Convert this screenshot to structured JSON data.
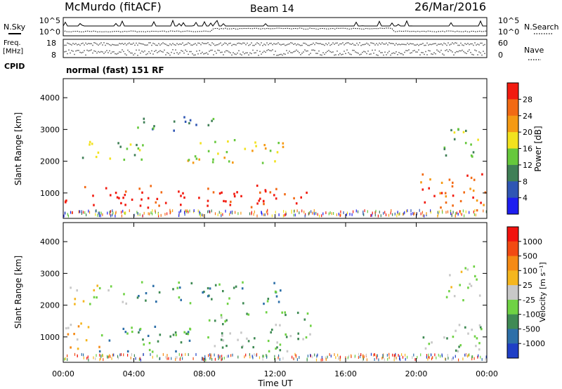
{
  "header": {
    "station": "McMurdo (fitACF)",
    "beam": "Beam 14",
    "date": "26/Mar/2016"
  },
  "aux_panels": {
    "nsky_label": "N.Sky",
    "nsearch_label": "N.Search",
    "noise_ticks": [
      "10^5",
      "10^0"
    ],
    "freq_label_top": "Freq.",
    "freq_label_bottom": "[MHz]",
    "freq_ticks": [
      "18",
      "8"
    ],
    "nave_label": "Nave",
    "nave_ticks": [
      "60",
      "0"
    ],
    "cpid_label": "CPID",
    "cpid_text": "normal (fast) 151 RF"
  },
  "chart_data": [
    {
      "type": "heatmap",
      "title": "",
      "xlabel": "",
      "ylabel": "Slant Range [km]",
      "yticks": [
        "1000",
        "2000",
        "3000",
        "4000"
      ],
      "ylim": [
        200,
        4600
      ],
      "xlim_hours": [
        0,
        24
      ],
      "colorbar": {
        "label": "Power [dB]",
        "ticks": [
          "4",
          "8",
          "12",
          "16",
          "20",
          "24",
          "28"
        ],
        "colors": [
          "#1d1df0",
          "#2f56b4",
          "#3f7f56",
          "#66c83c",
          "#f2e21e",
          "#f59a14",
          "#f26a14",
          "#f21b10"
        ]
      },
      "regions_description_units": "hours UT vs km",
      "bands": [
        {
          "t0": 0.0,
          "t1": 13.8,
          "r0": 500,
          "r1": 1200,
          "level": 7
        },
        {
          "t0": 0.2,
          "t1": 4.5,
          "r0": 2000,
          "r1": 2600,
          "level": 3
        },
        {
          "t0": 4.0,
          "t1": 8.5,
          "r0": 2900,
          "r1": 3400,
          "level": 2
        },
        {
          "t0": 7.0,
          "t1": 12.5,
          "r0": 1900,
          "r1": 2700,
          "level": 4
        },
        {
          "t0": 20.2,
          "t1": 24.0,
          "r0": 400,
          "r1": 1600,
          "level": 6
        },
        {
          "t0": 21.5,
          "t1": 23.5,
          "r0": 2000,
          "r1": 3100,
          "level": 3
        }
      ]
    },
    {
      "type": "heatmap",
      "title": "",
      "xlabel": "Time UT",
      "ylabel": "Slant Range [km]",
      "xticks": [
        "00:00",
        "04:00",
        "08:00",
        "12:00",
        "16:00",
        "20:00",
        "00:00"
      ],
      "yticks": [
        "1000",
        "2000",
        "3000",
        "4000"
      ],
      "ylim": [
        200,
        4600
      ],
      "xlim_hours": [
        0,
        24
      ],
      "colorbar": {
        "label": "Velocity [m s⁻¹]",
        "ticks": [
          "1000",
          "500",
          "100",
          "25",
          "-25",
          "-100",
          "-500",
          "-1000"
        ],
        "colors": [
          "#1f3fc6",
          "#2d6fa8",
          "#3f8a54",
          "#6fd244",
          "#c8c8c8",
          "#f5b61e",
          "#f58a14",
          "#f24a12",
          "#f2120e"
        ]
      },
      "bands": [
        {
          "t0": 0.0,
          "t1": 2.0,
          "r0": 500,
          "r1": 1400,
          "level": 5
        },
        {
          "t0": 2.0,
          "t1": 8.2,
          "r0": 500,
          "r1": 1300,
          "level": 2
        },
        {
          "t0": 8.2,
          "t1": 14.0,
          "r0": 500,
          "r1": 1800,
          "level": 3
        },
        {
          "t0": 0.2,
          "t1": 4.0,
          "r0": 2000,
          "r1": 2600,
          "level": 4
        },
        {
          "t0": 4.0,
          "t1": 12.5,
          "r0": 2000,
          "r1": 2700,
          "level": 2
        },
        {
          "t0": 20.3,
          "t1": 24.0,
          "r0": 500,
          "r1": 1400,
          "level": 3
        },
        {
          "t0": 21.6,
          "t1": 23.6,
          "r0": 2000,
          "r1": 3200,
          "level": 4
        }
      ]
    }
  ]
}
